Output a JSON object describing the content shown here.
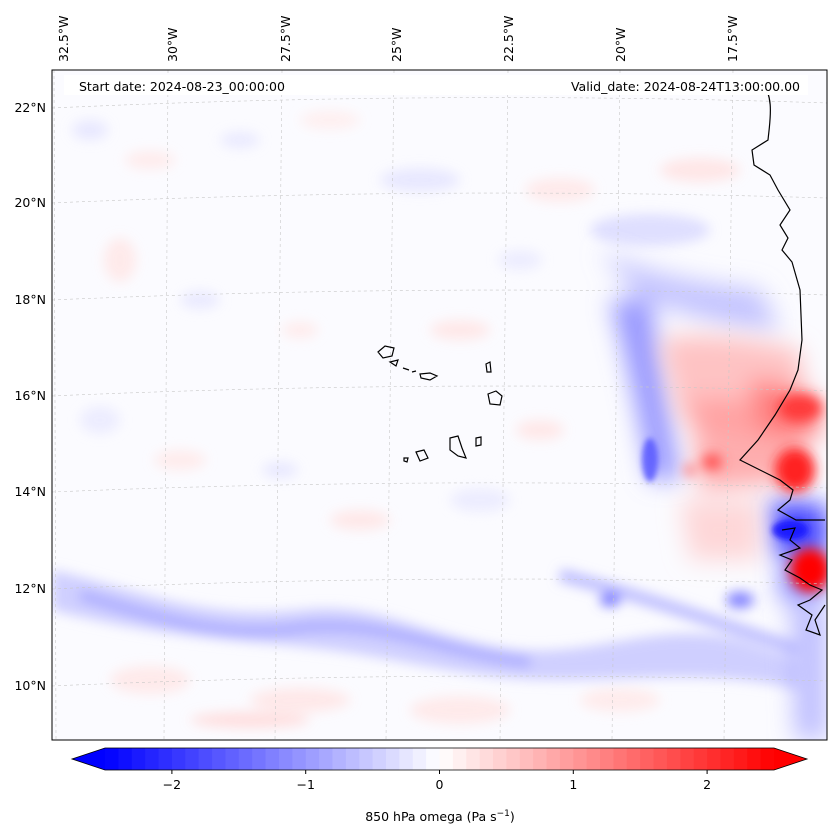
{
  "header": {
    "start_date": "Start date: 2024-08-23_00:00:00",
    "valid_date": "Valid_date: 2024-08-24T13:00:00.00"
  },
  "map": {
    "projection": "lambert-conformal",
    "field": "850 hPa omega",
    "extent": {
      "lon_min": -32.5,
      "lon_max": -16.2,
      "lat_min": 8.9,
      "lat_max": 22.8
    },
    "gridlines": true,
    "coastline_color": "#000000",
    "lon_labels": [
      "32.5°W",
      "30°W",
      "27.5°W",
      "25°W",
      "22.5°W",
      "20°W",
      "17.5°W"
    ],
    "lat_labels": [
      "22°N",
      "20°N",
      "18°N",
      "16°N",
      "14°N",
      "12°N",
      "10°N"
    ],
    "features": [
      {
        "name": "cape-verde-islands",
        "type": "islands"
      },
      {
        "name": "west-african-coast",
        "type": "coastline"
      },
      {
        "name": "itcz-band",
        "type": "weak-ascent-band"
      },
      {
        "name": "coastal-convection",
        "type": "strong-subsidence"
      }
    ]
  },
  "colorbar": {
    "label": "850 hPa omega (Pa s",
    "label_superscript": "−1",
    "label_close": ")",
    "colormap": "bwr",
    "min": -2.5,
    "max": 2.5,
    "extend": "both",
    "ticks": [
      {
        "value": -2,
        "label": "−2"
      },
      {
        "value": -1,
        "label": "−1"
      },
      {
        "value": 0,
        "label": "0"
      },
      {
        "value": 1,
        "label": "1"
      },
      {
        "value": 2,
        "label": "2"
      }
    ],
    "colors": {
      "low": "#0000ff",
      "mid": "#ffffff",
      "high": "#ff0000"
    }
  }
}
